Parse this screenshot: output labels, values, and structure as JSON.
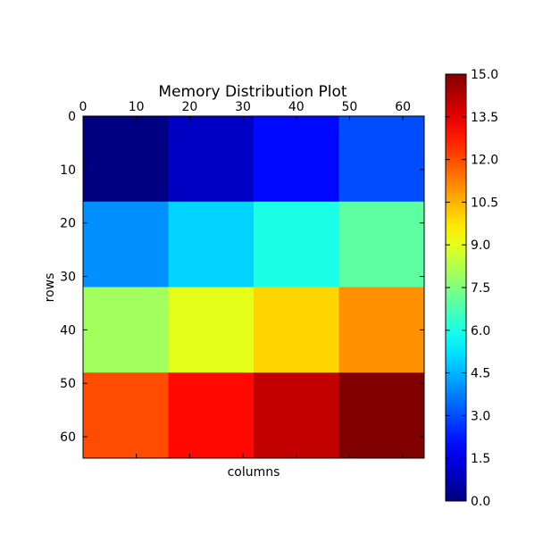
{
  "chart_data": {
    "type": "heatmap",
    "title": "Memory Distribution Plot",
    "xlabel": "columns",
    "ylabel": "rows",
    "x_ticks": [
      0,
      10,
      20,
      30,
      40,
      50,
      60
    ],
    "y_ticks": [
      0,
      10,
      20,
      30,
      40,
      50,
      60
    ],
    "x_range": [
      0,
      64
    ],
    "y_range": [
      0,
      64
    ],
    "x_ticks_position": "top",
    "y_axis_inverted": true,
    "grid": false,
    "colormap": "jet",
    "vmin": 0,
    "vmax": 15,
    "colorbar_ticks": [
      "0.0",
      "1.5",
      "3.0",
      "4.5",
      "6.0",
      "7.5",
      "9.0",
      "10.5",
      "12.0",
      "13.5",
      "15.0"
    ],
    "colorbar_position": "right",
    "block_size": 16,
    "values": [
      [
        0,
        1,
        2,
        3
      ],
      [
        4,
        5,
        6,
        7
      ],
      [
        8,
        9,
        10,
        11
      ],
      [
        12,
        13,
        14,
        15
      ]
    ]
  }
}
